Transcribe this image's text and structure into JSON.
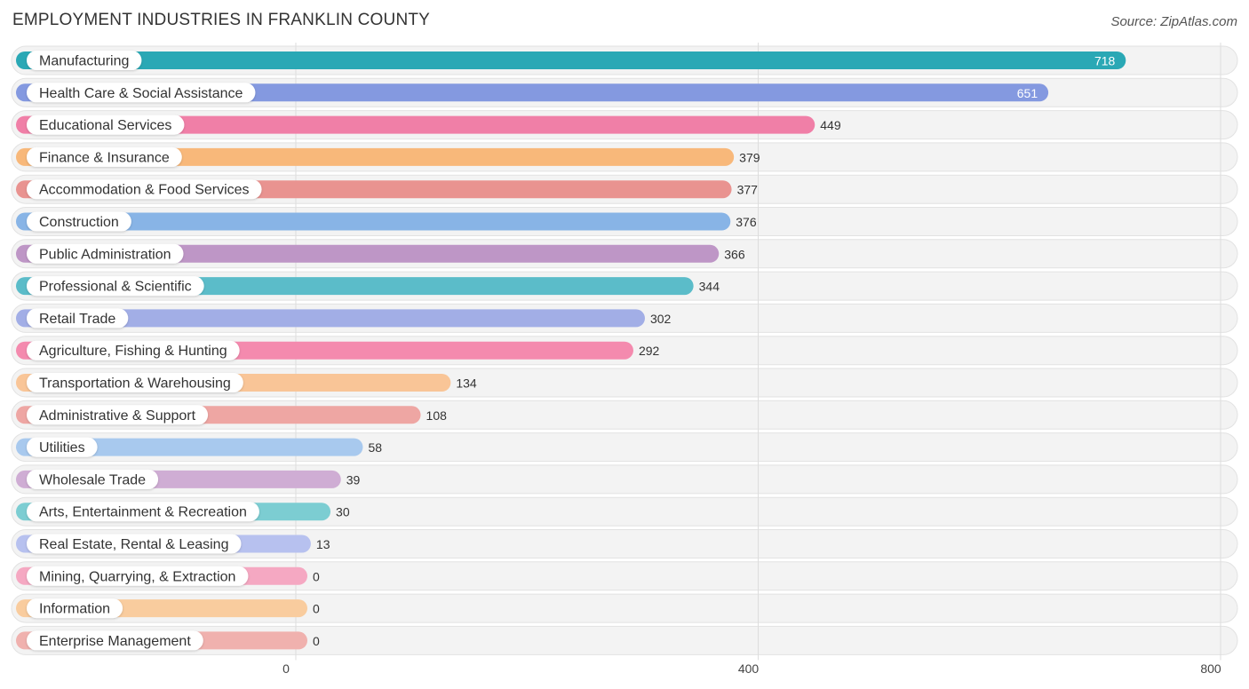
{
  "chart_data": {
    "type": "bar",
    "orientation": "horizontal",
    "title": "EMPLOYMENT INDUSTRIES IN FRANKLIN COUNTY",
    "source": "Source: ZipAtlas.com",
    "xlabel": "",
    "ylabel": "",
    "xlim": [
      0,
      800
    ],
    "xticks": [
      0,
      400,
      800
    ],
    "grid": true,
    "categories": [
      "Manufacturing",
      "Health Care & Social Assistance",
      "Educational Services",
      "Finance & Insurance",
      "Accommodation & Food Services",
      "Construction",
      "Public Administration",
      "Professional & Scientific",
      "Retail Trade",
      "Agriculture, Fishing & Hunting",
      "Transportation & Warehousing",
      "Administrative & Support",
      "Utilities",
      "Wholesale Trade",
      "Arts, Entertainment & Recreation",
      "Real Estate, Rental & Leasing",
      "Mining, Quarrying, & Extraction",
      "Information",
      "Enterprise Management"
    ],
    "values": [
      718,
      651,
      449,
      379,
      377,
      376,
      366,
      344,
      302,
      292,
      134,
      108,
      58,
      39,
      30,
      13,
      0,
      0,
      0
    ],
    "value_labels": [
      "718",
      "651",
      "449",
      "379",
      "377",
      "376",
      "366",
      "344",
      "302",
      "292",
      "134",
      "108",
      "58",
      "39",
      "30",
      "13",
      "0",
      "0",
      "0"
    ],
    "colors": [
      "#2aa8b5",
      "#8499e0",
      "#f07fa7",
      "#f8b87a",
      "#e99390",
      "#88b4e6",
      "#be96c6",
      "#5bbcc9",
      "#a2aee6",
      "#f48aae",
      "#f9c597",
      "#eea6a3",
      "#a8c9ee",
      "#cfadd4",
      "#7ccdd2",
      "#b7c1ef",
      "#f5a8c2",
      "#f9cc9e",
      "#f0b1ae"
    ]
  }
}
